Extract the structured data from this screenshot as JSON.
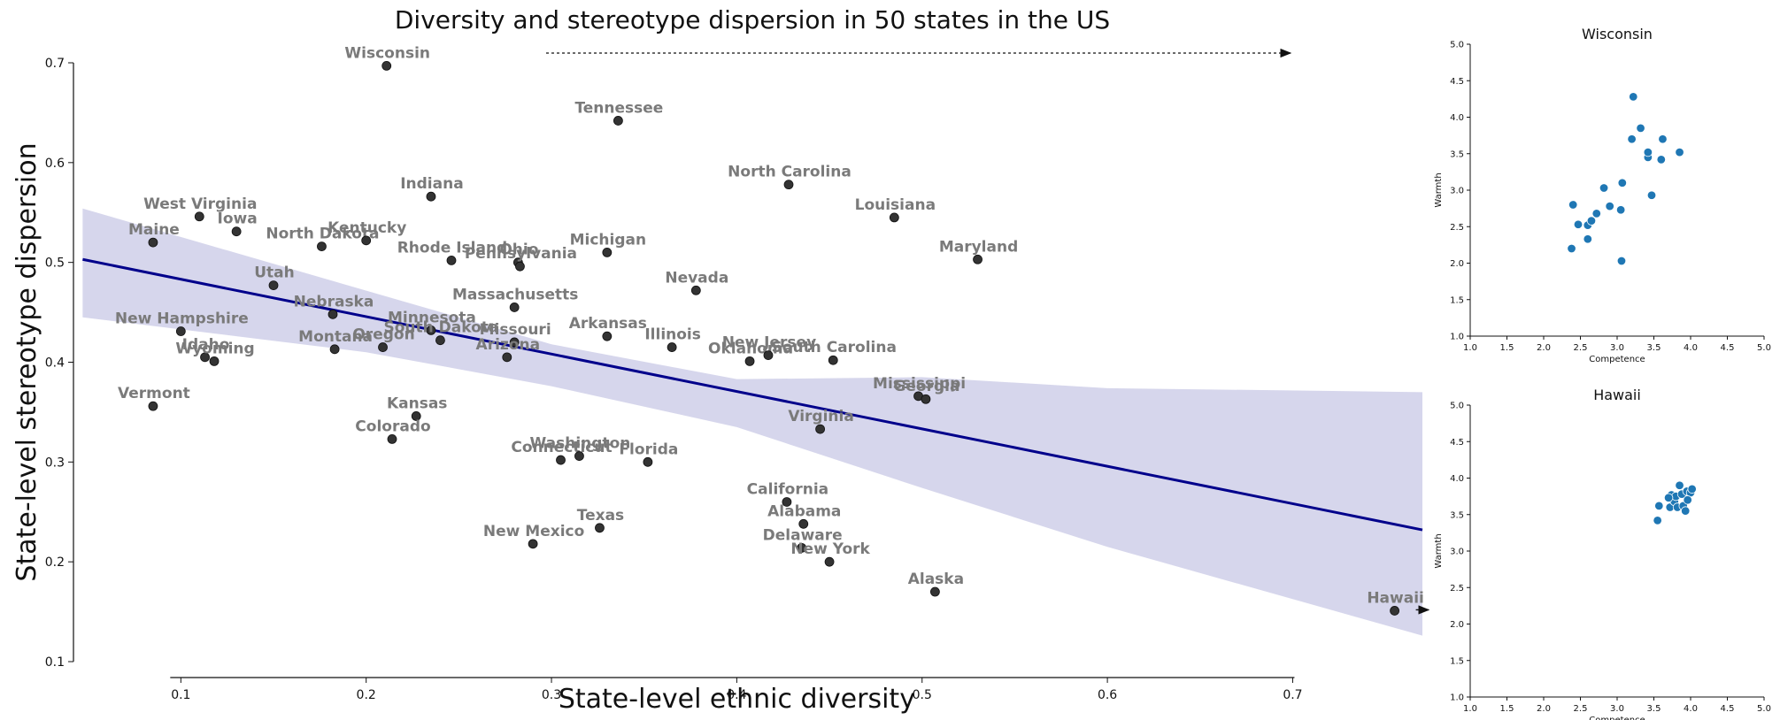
{
  "chart_data": [
    {
      "type": "scatter",
      "title": "Diversity and stereotype dispersion in 50 states in the US",
      "xlabel": "State-level ethnic diversity",
      "ylabel": "State-level stereotype dispersion",
      "xlim": [
        0.043,
        0.77
      ],
      "ylim": [
        0.1,
        0.7
      ],
      "xticks": [
        "0.1",
        "0.2",
        "0.3",
        "0.4",
        "0.5",
        "0.6",
        "0.7"
      ],
      "yticks": [
        "0.1",
        "0.2",
        "0.3",
        "0.4",
        "0.5",
        "0.6",
        "0.7"
      ],
      "regression": {
        "line": [
          [
            0.047,
            0.503
          ],
          [
            0.77,
            0.232
          ]
        ],
        "ci_upper": [
          [
            0.047,
            0.554
          ],
          [
            0.3,
            0.418
          ],
          [
            0.4,
            0.383
          ],
          [
            0.5,
            0.385
          ],
          [
            0.6,
            0.374
          ],
          [
            0.77,
            0.37
          ]
        ],
        "ci_lower": [
          [
            0.047,
            0.445
          ],
          [
            0.2,
            0.41
          ],
          [
            0.3,
            0.376
          ],
          [
            0.4,
            0.335
          ],
          [
            0.5,
            0.274
          ],
          [
            0.6,
            0.215
          ],
          [
            0.77,
            0.126
          ]
        ],
        "line_color": "#00008b",
        "band_color": "#c8c8e6"
      },
      "point_color": "#333333",
      "points": [
        {
          "state": "Wisconsin",
          "x": 0.211,
          "y": 0.697
        },
        {
          "state": "Tennessee",
          "x": 0.336,
          "y": 0.642
        },
        {
          "state": "Indiana",
          "x": 0.235,
          "y": 0.566
        },
        {
          "state": "North Carolina",
          "x": 0.428,
          "y": 0.578
        },
        {
          "state": "Louisiana",
          "x": 0.485,
          "y": 0.545
        },
        {
          "state": "Maryland",
          "x": 0.53,
          "y": 0.503
        },
        {
          "state": "West Virginia",
          "x": 0.11,
          "y": 0.546
        },
        {
          "state": "Iowa",
          "x": 0.13,
          "y": 0.531
        },
        {
          "state": "Maine",
          "x": 0.085,
          "y": 0.52
        },
        {
          "state": "North Dakota",
          "x": 0.176,
          "y": 0.516
        },
        {
          "state": "Kentucky",
          "x": 0.2,
          "y": 0.522
        },
        {
          "state": "Rhode Island",
          "x": 0.246,
          "y": 0.502
        },
        {
          "state": "Ohio",
          "x": 0.282,
          "y": 0.5
        },
        {
          "state": "Pennsylvania",
          "x": 0.283,
          "y": 0.496
        },
        {
          "state": "Michigan",
          "x": 0.33,
          "y": 0.51
        },
        {
          "state": "Nevada",
          "x": 0.378,
          "y": 0.472
        },
        {
          "state": "Utah",
          "x": 0.15,
          "y": 0.477
        },
        {
          "state": "Massachusetts",
          "x": 0.28,
          "y": 0.455
        },
        {
          "state": "Nebraska",
          "x": 0.182,
          "y": 0.448
        },
        {
          "state": "New Hampshire",
          "x": 0.1,
          "y": 0.431
        },
        {
          "state": "Minnesota",
          "x": 0.235,
          "y": 0.432
        },
        {
          "state": "South Dakota",
          "x": 0.24,
          "y": 0.422
        },
        {
          "state": "Missouri",
          "x": 0.28,
          "y": 0.42
        },
        {
          "state": "Arkansas",
          "x": 0.33,
          "y": 0.426
        },
        {
          "state": "Illinois",
          "x": 0.365,
          "y": 0.415
        },
        {
          "state": "Montana",
          "x": 0.183,
          "y": 0.413
        },
        {
          "state": "Oregon",
          "x": 0.209,
          "y": 0.415
        },
        {
          "state": "Arizona",
          "x": 0.276,
          "y": 0.405
        },
        {
          "state": "Idaho",
          "x": 0.113,
          "y": 0.405
        },
        {
          "state": "Wyoming",
          "x": 0.118,
          "y": 0.401
        },
        {
          "state": "Oklahoma",
          "x": 0.407,
          "y": 0.401
        },
        {
          "state": "New Jersey",
          "x": 0.417,
          "y": 0.407
        },
        {
          "state": "South Carolina",
          "x": 0.452,
          "y": 0.402
        },
        {
          "state": "Mississippi",
          "x": 0.498,
          "y": 0.366
        },
        {
          "state": "Georgia",
          "x": 0.502,
          "y": 0.363
        },
        {
          "state": "Vermont",
          "x": 0.085,
          "y": 0.356
        },
        {
          "state": "Kansas",
          "x": 0.227,
          "y": 0.346
        },
        {
          "state": "Virginia",
          "x": 0.445,
          "y": 0.333
        },
        {
          "state": "Colorado",
          "x": 0.214,
          "y": 0.323
        },
        {
          "state": "Connecticut",
          "x": 0.305,
          "y": 0.302
        },
        {
          "state": "Washington",
          "x": 0.315,
          "y": 0.306
        },
        {
          "state": "Florida",
          "x": 0.352,
          "y": 0.3
        },
        {
          "state": "California",
          "x": 0.427,
          "y": 0.26
        },
        {
          "state": "Alabama",
          "x": 0.436,
          "y": 0.238
        },
        {
          "state": "Texas",
          "x": 0.326,
          "y": 0.234
        },
        {
          "state": "New Mexico",
          "x": 0.29,
          "y": 0.218
        },
        {
          "state": "Delaware",
          "x": 0.435,
          "y": 0.214
        },
        {
          "state": "New York",
          "x": 0.45,
          "y": 0.2
        },
        {
          "state": "Alaska",
          "x": 0.507,
          "y": 0.17
        },
        {
          "state": "Hawaii",
          "x": 0.755,
          "y": 0.151
        }
      ]
    },
    {
      "type": "scatter",
      "title": "Wisconsin",
      "xlabel": "Competence",
      "ylabel": "Warmth",
      "xlim": [
        1.0,
        5.0
      ],
      "ylim": [
        1.0,
        5.0
      ],
      "xticks": [
        "1.0",
        "1.5",
        "2.0",
        "2.5",
        "3.0",
        "3.5",
        "4.0",
        "4.5",
        "5.0"
      ],
      "yticks": [
        "1.0",
        "1.5",
        "2.0",
        "2.5",
        "3.0",
        "3.5",
        "4.0",
        "4.5",
        "5.0"
      ],
      "point_color": "#1f77b4",
      "points": [
        {
          "x": 2.38,
          "y": 2.2
        },
        {
          "x": 2.4,
          "y": 2.8
        },
        {
          "x": 2.47,
          "y": 2.53
        },
        {
          "x": 2.6,
          "y": 2.33
        },
        {
          "x": 2.6,
          "y": 2.52
        },
        {
          "x": 2.65,
          "y": 2.58
        },
        {
          "x": 2.72,
          "y": 2.68
        },
        {
          "x": 2.82,
          "y": 3.03
        },
        {
          "x": 2.9,
          "y": 2.78
        },
        {
          "x": 3.05,
          "y": 2.73
        },
        {
          "x": 3.07,
          "y": 3.1
        },
        {
          "x": 3.06,
          "y": 2.03
        },
        {
          "x": 3.2,
          "y": 3.7
        },
        {
          "x": 3.22,
          "y": 4.28
        },
        {
          "x": 3.32,
          "y": 3.85
        },
        {
          "x": 3.42,
          "y": 3.45
        },
        {
          "x": 3.42,
          "y": 3.52
        },
        {
          "x": 3.47,
          "y": 2.93
        },
        {
          "x": 3.6,
          "y": 3.42
        },
        {
          "x": 3.62,
          "y": 3.7
        },
        {
          "x": 3.85,
          "y": 3.52
        }
      ]
    },
    {
      "type": "scatter",
      "title": "Hawaii",
      "xlabel": "Competence",
      "ylabel": "Warmth",
      "xlim": [
        1.0,
        5.0
      ],
      "ylim": [
        1.0,
        5.0
      ],
      "xticks": [
        "1.0",
        "1.5",
        "2.0",
        "2.5",
        "3.0",
        "3.5",
        "4.0",
        "4.5",
        "5.0"
      ],
      "yticks": [
        "1.0",
        "1.5",
        "2.0",
        "2.5",
        "3.0",
        "3.5",
        "4.0",
        "4.5",
        "5.0"
      ],
      "point_color": "#1f77b4",
      "points": [
        {
          "x": 3.55,
          "y": 3.42
        },
        {
          "x": 3.57,
          "y": 3.62
        },
        {
          "x": 3.72,
          "y": 3.6
        },
        {
          "x": 3.74,
          "y": 3.77
        },
        {
          "x": 3.78,
          "y": 3.68
        },
        {
          "x": 3.8,
          "y": 3.75
        },
        {
          "x": 3.82,
          "y": 3.6
        },
        {
          "x": 3.85,
          "y": 3.9
        },
        {
          "x": 3.88,
          "y": 3.78
        },
        {
          "x": 3.9,
          "y": 3.62
        },
        {
          "x": 3.93,
          "y": 3.55
        },
        {
          "x": 3.95,
          "y": 3.82
        },
        {
          "x": 4.0,
          "y": 3.8
        },
        {
          "x": 4.02,
          "y": 3.85
        },
        {
          "x": 3.7,
          "y": 3.73
        },
        {
          "x": 3.96,
          "y": 3.7
        }
      ]
    }
  ]
}
